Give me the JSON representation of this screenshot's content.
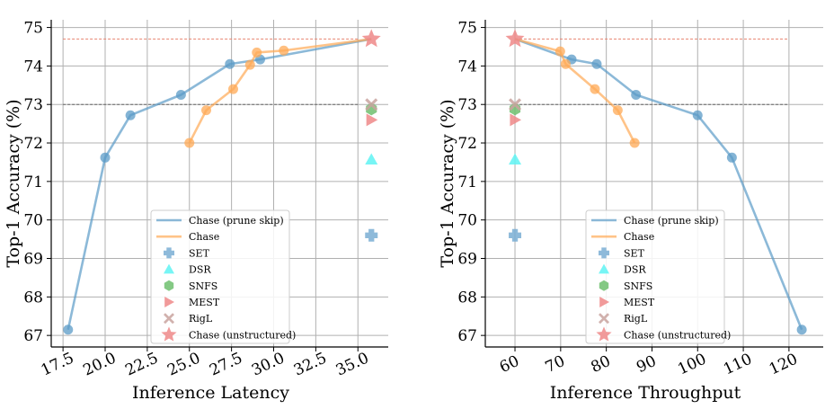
{
  "chart_data": [
    {
      "type": "line",
      "xlabel": "Inference Latency",
      "ylabel": "Top-1 Accuracy (%)",
      "xlim": [
        16.8,
        36.8
      ],
      "ylim": [
        66.7,
        75.2
      ],
      "xticks": [
        17.5,
        20.0,
        22.5,
        25.0,
        27.5,
        30.0,
        32.5,
        35.0
      ],
      "xtick_labels": [
        "17.5",
        "20.0",
        "22.5",
        "25.0",
        "27.5",
        "30.0",
        "32.5",
        "35.0"
      ],
      "yticks": [
        67,
        68,
        69,
        70,
        71,
        72,
        73,
        74,
        75
      ],
      "ytick_labels": [
        "67",
        "68",
        "69",
        "70",
        "71",
        "72",
        "73",
        "74",
        "75"
      ],
      "grid": true,
      "hlines": [
        {
          "y": 74.7,
          "color": "#e8826f",
          "xfrom": 17.5,
          "xto": 35.0
        },
        {
          "y": 73.0,
          "color": "#666666",
          "xfrom": 17.5,
          "xto": 35.0
        }
      ],
      "series": [
        {
          "name": "Chase (prune skip)",
          "kind": "line",
          "color": "#5b9bc7",
          "x": [
            17.8,
            20.0,
            21.5,
            24.5,
            27.4,
            29.2,
            35.8
          ],
          "y": [
            67.15,
            71.62,
            72.72,
            73.25,
            74.05,
            74.17,
            74.7
          ]
        },
        {
          "name": "Chase",
          "kind": "line",
          "color": "#ffaa55",
          "x": [
            25.0,
            26.0,
            27.6,
            28.6,
            29.0,
            30.6,
            35.8
          ],
          "y": [
            72.0,
            72.85,
            73.4,
            74.03,
            74.35,
            74.4,
            74.7
          ]
        },
        {
          "name": "SET",
          "kind": "marker",
          "marker": "plus",
          "color": "#7aaed3",
          "x": [
            35.8
          ],
          "y": [
            69.6
          ]
        },
        {
          "name": "DSR",
          "kind": "marker",
          "marker": "triangle-up",
          "color": "#5ff3f3",
          "x": [
            35.8
          ],
          "y": [
            71.57
          ]
        },
        {
          "name": "SNFS",
          "kind": "marker",
          "marker": "hexagon",
          "color": "#6fbf6f",
          "x": [
            35.8
          ],
          "y": [
            72.88
          ]
        },
        {
          "name": "MEST",
          "kind": "marker",
          "marker": "triangle-right",
          "color": "#ee8888",
          "x": [
            35.8
          ],
          "y": [
            72.6
          ]
        },
        {
          "name": "RigL",
          "kind": "marker",
          "marker": "x",
          "color": "#c9a39f",
          "x": [
            35.8
          ],
          "y": [
            73.0
          ]
        },
        {
          "name": "Chase (unstructured)",
          "kind": "marker",
          "marker": "star",
          "color": "#ee8888",
          "x": [
            35.8
          ],
          "y": [
            74.7
          ]
        }
      ]
    },
    {
      "type": "line",
      "xlabel": "Inference Throughput",
      "ylabel": "Top-1 Accuracy (%)",
      "xlim": [
        53.5,
        127.5
      ],
      "ylim": [
        66.7,
        75.2
      ],
      "xticks": [
        60,
        70,
        80,
        90,
        100,
        110,
        120
      ],
      "xtick_labels": [
        "60",
        "70",
        "80",
        "90",
        "100",
        "110",
        "120"
      ],
      "yticks": [
        67,
        68,
        69,
        70,
        71,
        72,
        73,
        74,
        75
      ],
      "ytick_labels": [
        "67",
        "68",
        "69",
        "70",
        "71",
        "72",
        "73",
        "74",
        "75"
      ],
      "grid": true,
      "hlines": [
        {
          "y": 74.7,
          "color": "#e8826f",
          "xfrom": 60,
          "xto": 120
        },
        {
          "y": 73.0,
          "color": "#666666",
          "xfrom": 60,
          "xto": 120
        }
      ],
      "series": [
        {
          "name": "Chase (prune skip)",
          "kind": "line",
          "color": "#5b9bc7",
          "x": [
            60,
            72.4,
            77.9,
            86.5,
            100.0,
            107.5,
            122.8
          ],
          "y": [
            74.7,
            74.17,
            74.05,
            73.25,
            72.72,
            71.62,
            67.15
          ]
        },
        {
          "name": "Chase",
          "kind": "line",
          "color": "#ffaa55",
          "x": [
            60,
            69.9,
            71.1,
            77.5,
            82.5,
            86.2
          ],
          "y": [
            74.7,
            74.38,
            74.05,
            73.4,
            72.85,
            72.0
          ]
        },
        {
          "name": "SET",
          "kind": "marker",
          "marker": "plus",
          "color": "#7aaed3",
          "x": [
            60
          ],
          "y": [
            69.6
          ]
        },
        {
          "name": "DSR",
          "kind": "marker",
          "marker": "triangle-up",
          "color": "#5ff3f3",
          "x": [
            60
          ],
          "y": [
            71.57
          ]
        },
        {
          "name": "SNFS",
          "kind": "marker",
          "marker": "hexagon",
          "color": "#6fbf6f",
          "x": [
            60
          ],
          "y": [
            72.88
          ]
        },
        {
          "name": "MEST",
          "kind": "marker",
          "marker": "triangle-right",
          "color": "#ee8888",
          "x": [
            60
          ],
          "y": [
            72.6
          ]
        },
        {
          "name": "RigL",
          "kind": "marker",
          "marker": "x",
          "color": "#c9a39f",
          "x": [
            60
          ],
          "y": [
            73.0
          ]
        },
        {
          "name": "Chase (unstructured)",
          "kind": "marker",
          "marker": "star",
          "color": "#ee8888",
          "x": [
            60
          ],
          "y": [
            74.7
          ]
        }
      ]
    }
  ]
}
